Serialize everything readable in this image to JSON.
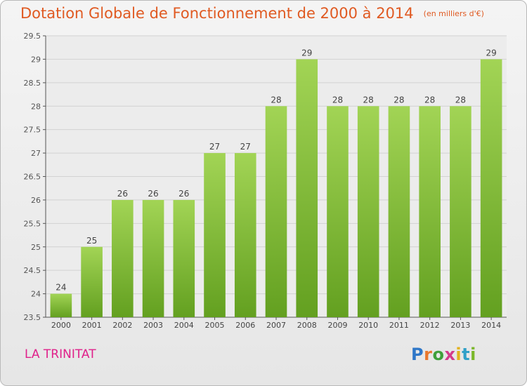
{
  "chart_data": {
    "type": "bar",
    "title": "Dotation Globale de Fonctionnement de 2000 à 2014",
    "unit_note": "(en milliers d'€)",
    "xlabel": "",
    "ylabel": "",
    "categories": [
      "2000",
      "2001",
      "2002",
      "2003",
      "2004",
      "2005",
      "2006",
      "2007",
      "2008",
      "2009",
      "2010",
      "2011",
      "2012",
      "2013",
      "2014"
    ],
    "values": [
      24,
      25,
      26,
      26,
      26,
      27,
      27,
      28,
      29,
      28,
      28,
      28,
      28,
      28,
      29
    ],
    "ylim": [
      23.5,
      29.5
    ],
    "yticks": [
      "23.5",
      "24",
      "24.5",
      "25",
      "25.5",
      "26",
      "26.5",
      "27",
      "27.5",
      "28",
      "28.5",
      "29",
      "29.5"
    ],
    "grid": true,
    "bar_color": "#84c43a",
    "bar_color_light": "#a2d455",
    "bar_color_dark": "#63a020"
  },
  "footer": {
    "place": "LA TRINITAT",
    "logo_text": "Proxiti"
  }
}
